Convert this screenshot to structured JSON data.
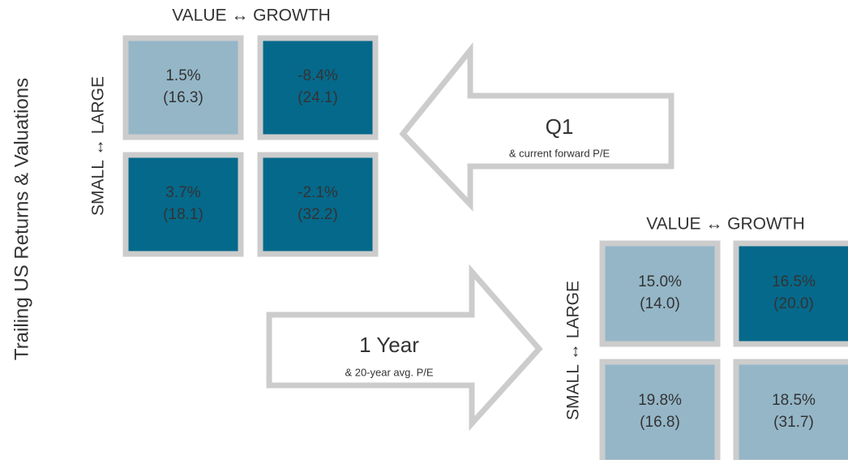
{
  "title": "Trailing US Returns & Valuations",
  "grids": [
    {
      "x_axis_label": "VALUE ↔ GROWTH",
      "y_axis_label": "SMALL ↔ LARGE",
      "cells": [
        {
          "return": "1.5%",
          "pe": "(16.3)",
          "color": "#94b6c7"
        },
        {
          "return": "-8.4%",
          "pe": "(24.1)",
          "color": "#05698b"
        },
        {
          "return": "3.7%",
          "pe": "(18.1)",
          "color": "#05698b"
        },
        {
          "return": "-2.1%",
          "pe": "(32.2)",
          "color": "#05698b"
        }
      ]
    },
    {
      "x_axis_label": "VALUE ↔ GROWTH",
      "y_axis_label": "SMALL ↔ LARGE",
      "cells": [
        {
          "return": "15.0%",
          "pe": "(14.0)",
          "color": "#94b6c7"
        },
        {
          "return": "16.5%",
          "pe": "(20.0)",
          "color": "#05698b"
        },
        {
          "return": "19.8%",
          "pe": "(16.8)",
          "color": "#94b6c7"
        },
        {
          "return": "18.5%",
          "pe": "(31.7)",
          "color": "#94b6c7"
        }
      ]
    }
  ],
  "arrows": [
    {
      "label": "Q1",
      "sublabel": "& current forward P/E"
    },
    {
      "label": "1 Year",
      "sublabel": "& 20-year avg. P/E"
    }
  ]
}
